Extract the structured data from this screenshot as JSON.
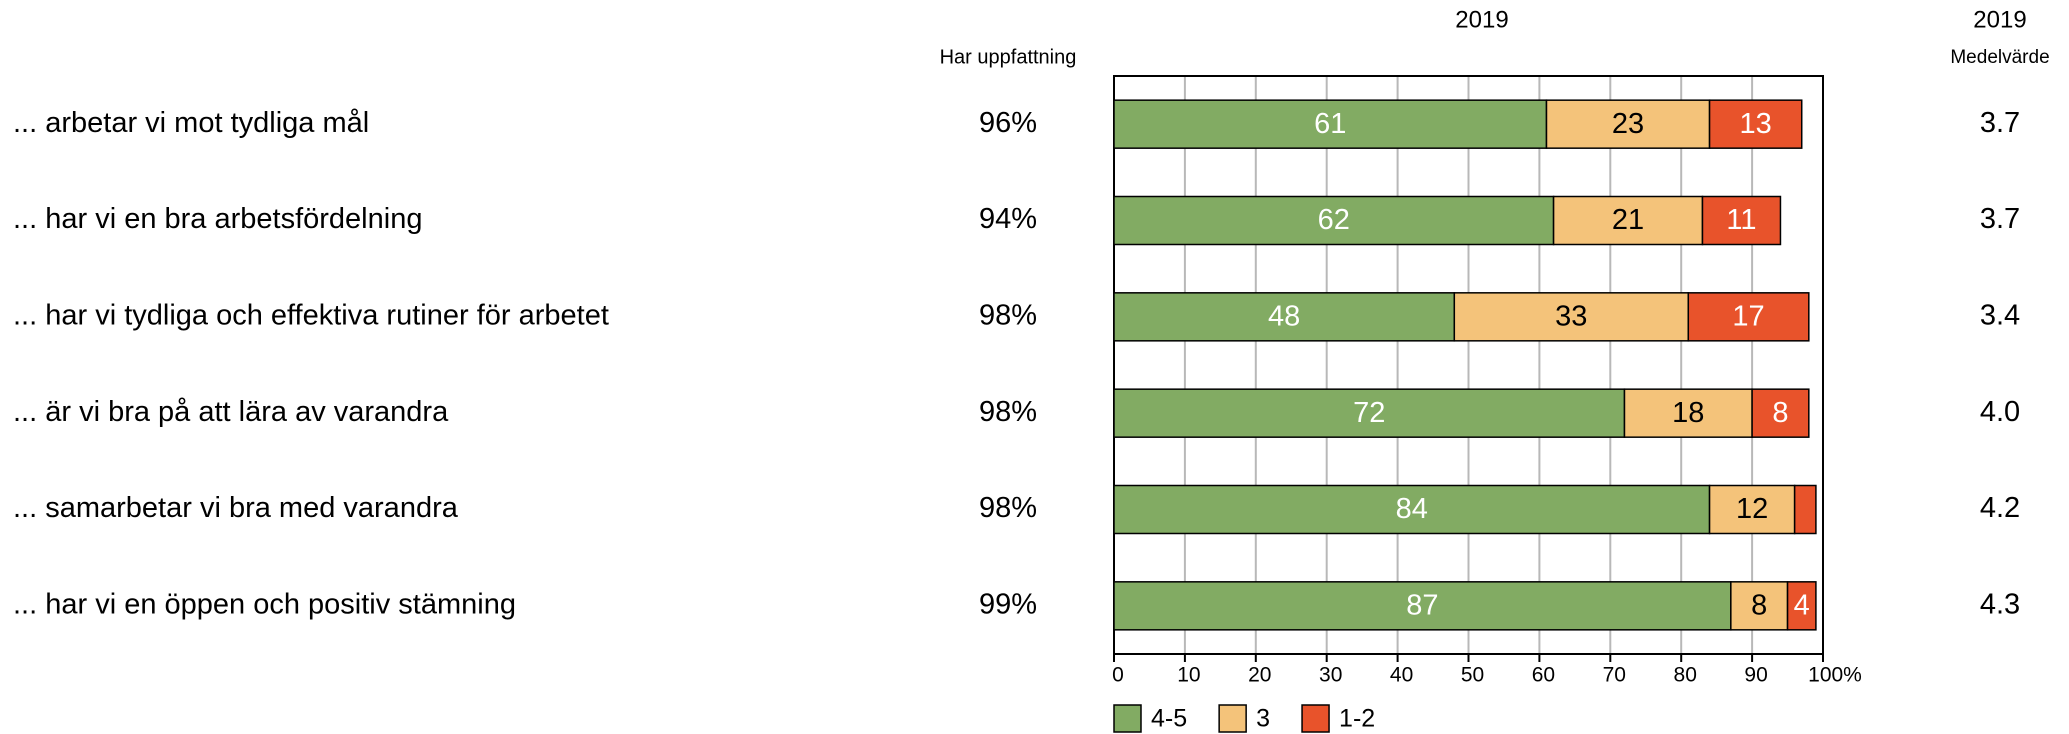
{
  "chart_data": {
    "type": "stacked_barh",
    "title": "2019",
    "share_title": "Har uppfattning",
    "mean_year": "2019",
    "mean_title": "Medelvärde",
    "categories": [
      "... arbetar vi mot tydliga mål",
      "... har vi en bra arbetsfördelning",
      "... har vi tydliga och effektiva rutiner för arbetet",
      "... är vi bra på att lära av varandra",
      "... samarbetar vi bra med varandra",
      "... har vi en öppen och positiv stämning"
    ],
    "shares": [
      "96%",
      "94%",
      "98%",
      "98%",
      "98%",
      "99%"
    ],
    "means": [
      "3.7",
      "3.7",
      "3.4",
      "4.0",
      "4.2",
      "4.3"
    ],
    "series": [
      {
        "name": "4-5",
        "color": "#82ab63",
        "text_color": "#ffffff",
        "values": [
          61,
          62,
          48,
          72,
          84,
          87
        ]
      },
      {
        "name": "3",
        "color": "#f4c37a",
        "text_color": "#000000",
        "values": [
          23,
          21,
          33,
          18,
          12,
          8
        ]
      },
      {
        "name": "1-2",
        "color": "#e8532b",
        "text_color": "#ffffff",
        "values": [
          13,
          11,
          17,
          8,
          3,
          4
        ]
      }
    ],
    "xlim": [
      0,
      100
    ],
    "xticks": [
      0,
      10,
      20,
      30,
      40,
      50,
      60,
      70,
      80,
      90,
      {
        "value": 100,
        "label": "100%"
      }
    ],
    "grid": true,
    "legend": "bottom"
  }
}
